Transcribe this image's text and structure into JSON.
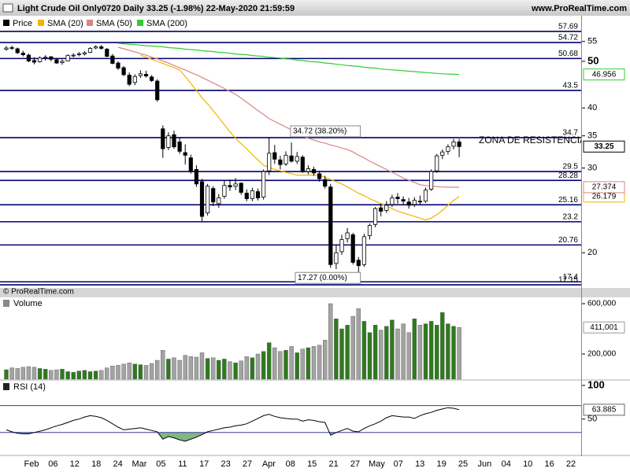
{
  "header": {
    "title": "Light Crude Oil Only0720 Daily 33.25 (-1.98%) 22-May-2020 21:59:59",
    "site": "www.ProRealTime.com"
  },
  "x_axis": {
    "labels": [
      "Feb",
      "06",
      "12",
      "18",
      "24",
      "Mar",
      "05",
      "11",
      "17",
      "23",
      "27",
      "Apr",
      "08",
      "15",
      "21",
      "27",
      "May",
      "07",
      "13",
      "19",
      "25",
      "Jun",
      "04",
      "10",
      "16",
      "22"
    ]
  },
  "chart_data": [
    {
      "type": "candlestick",
      "name": "Price",
      "log_scale": true,
      "ylim": [
        16.9,
        62.2
      ],
      "yticks": [
        20,
        30,
        35,
        40,
        50,
        55
      ],
      "up_color": "#ffffff",
      "down_color": "#000000",
      "ohlc": [
        [
          53.0,
          53.8,
          52.6,
          53.3
        ],
        [
          53.4,
          53.9,
          52.8,
          53.3
        ],
        [
          53.1,
          53.4,
          51.8,
          52.1
        ],
        [
          52.0,
          52.6,
          51.2,
          51.6
        ],
        [
          51.5,
          51.9,
          49.8,
          50.1
        ],
        [
          50.2,
          51.0,
          49.3,
          49.8
        ],
        [
          49.9,
          51.2,
          49.7,
          50.8
        ],
        [
          50.9,
          51.5,
          50.2,
          51.0
        ],
        [
          51.1,
          51.3,
          50.0,
          50.5
        ],
        [
          50.4,
          50.8,
          49.4,
          49.6
        ],
        [
          49.7,
          50.5,
          49.2,
          50.0
        ],
        [
          50.1,
          51.7,
          50.0,
          51.4
        ],
        [
          51.4,
          52.0,
          51.0,
          51.5
        ],
        [
          51.6,
          52.3,
          51.2,
          51.8
        ],
        [
          51.8,
          52.5,
          51.4,
          52.1
        ],
        [
          52.2,
          53.5,
          52.0,
          53.2
        ],
        [
          53.3,
          54.0,
          53.0,
          53.6
        ],
        [
          53.6,
          54.1,
          52.9,
          53.2
        ],
        [
          53.0,
          53.3,
          51.0,
          51.2
        ],
        [
          51.3,
          51.8,
          49.3,
          49.5
        ],
        [
          49.6,
          50.0,
          48.0,
          48.4
        ],
        [
          48.5,
          48.9,
          46.6,
          46.9
        ],
        [
          46.8,
          47.4,
          44.4,
          44.8
        ],
        [
          45.2,
          47.0,
          44.6,
          46.5
        ],
        [
          46.7,
          47.9,
          46.2,
          47.1
        ],
        [
          47.0,
          47.8,
          46.3,
          46.6
        ],
        [
          46.4,
          46.8,
          45.3,
          45.6
        ],
        [
          45.5,
          45.9,
          41.2,
          41.6
        ],
        [
          36.2,
          36.8,
          31.5,
          32.9
        ],
        [
          33.1,
          35.6,
          32.7,
          35.0
        ],
        [
          35.2,
          35.9,
          32.9,
          33.2
        ],
        [
          34.0,
          34.8,
          32.1,
          32.5
        ],
        [
          32.3,
          33.6,
          30.5,
          31.9
        ],
        [
          31.5,
          32.0,
          29.2,
          29.5
        ],
        [
          29.8,
          30.4,
          27.4,
          27.8
        ],
        [
          28.1,
          28.5,
          23.2,
          23.8
        ],
        [
          24.2,
          27.8,
          23.9,
          27.5
        ],
        [
          27.2,
          27.5,
          25.0,
          25.5
        ],
        [
          25.3,
          26.5,
          24.8,
          26.0
        ],
        [
          26.2,
          28.3,
          25.9,
          27.6
        ],
        [
          27.6,
          28.4,
          26.9,
          27.4
        ],
        [
          27.5,
          28.6,
          27.0,
          27.8
        ],
        [
          27.9,
          28.0,
          26.4,
          26.7
        ],
        [
          26.6,
          27.1,
          25.6,
          25.9
        ],
        [
          25.9,
          27.3,
          25.6,
          26.9
        ],
        [
          26.8,
          27.2,
          25.7,
          26.0
        ],
        [
          26.1,
          29.8,
          25.8,
          29.5
        ],
        [
          29.6,
          34.72,
          29.0,
          32.2
        ],
        [
          32.3,
          33.5,
          30.6,
          31.3
        ],
        [
          31.2,
          31.8,
          29.8,
          30.5
        ],
        [
          30.6,
          32.5,
          30.3,
          31.9
        ],
        [
          31.8,
          33.9,
          30.8,
          31.0
        ],
        [
          31.0,
          32.4,
          30.6,
          31.7
        ],
        [
          31.6,
          31.9,
          29.3,
          29.6
        ],
        [
          29.5,
          30.4,
          29.1,
          29.9
        ],
        [
          29.8,
          30.2,
          28.9,
          29.3
        ],
        [
          29.2,
          29.6,
          28.1,
          28.5
        ],
        [
          28.4,
          28.9,
          27.2,
          27.5
        ],
        [
          27.4,
          27.8,
          18.6,
          18.9
        ],
        [
          19.0,
          20.8,
          18.5,
          20.0
        ],
        [
          20.1,
          21.8,
          19.8,
          21.3
        ],
        [
          21.4,
          22.5,
          21.0,
          22.0
        ],
        [
          21.8,
          22.0,
          18.9,
          19.1
        ],
        [
          19.3,
          19.6,
          17.27,
          18.8
        ],
        [
          18.9,
          21.9,
          18.7,
          21.6
        ],
        [
          21.7,
          23.0,
          21.3,
          22.8
        ],
        [
          22.9,
          24.9,
          22.6,
          24.7
        ],
        [
          24.8,
          25.3,
          23.8,
          24.4
        ],
        [
          24.5,
          25.6,
          24.2,
          25.1
        ],
        [
          25.2,
          26.4,
          24.9,
          26.0
        ],
        [
          26.1,
          26.6,
          25.3,
          25.9
        ],
        [
          25.8,
          26.2,
          25.1,
          25.6
        ],
        [
          25.5,
          26.0,
          24.7,
          25.1
        ],
        [
          25.2,
          26.1,
          24.9,
          25.7
        ],
        [
          25.6,
          26.3,
          25.1,
          25.5
        ],
        [
          25.6,
          27.3,
          25.4,
          27.0
        ],
        [
          27.1,
          29.8,
          26.9,
          29.5
        ],
        [
          29.6,
          32.1,
          29.3,
          31.8
        ],
        [
          31.9,
          32.8,
          31.3,
          32.4
        ],
        [
          32.5,
          33.6,
          32.0,
          33.2
        ],
        [
          33.3,
          34.5,
          32.8,
          34.0
        ],
        [
          34.0,
          34.5,
          31.6,
          33.25
        ]
      ],
      "series": [
        {
          "name": "SMA (20)",
          "color": "#f2b400",
          "values": [
            null,
            null,
            null,
            null,
            null,
            null,
            null,
            null,
            null,
            null,
            null,
            null,
            null,
            null,
            null,
            null,
            null,
            null,
            null,
            null,
            null,
            null,
            null,
            null,
            51.5,
            51.0,
            50.5,
            50.0,
            49.5,
            49.0,
            48.5,
            48.0,
            46.5,
            45.0,
            43.5,
            42.0,
            40.8,
            39.5,
            38.2,
            36.9,
            35.7,
            34.6,
            33.7,
            32.9,
            32.0,
            31.2,
            30.4,
            30.1,
            29.8,
            29.6,
            29.4,
            29.2,
            29.0,
            29.0,
            29.0,
            29.0,
            29.0,
            28.7,
            28.4,
            28.1,
            27.8,
            27.4,
            27.0,
            26.6,
            26.3,
            25.9,
            25.6,
            25.3,
            25.0,
            24.7,
            24.4,
            24.2,
            24.0,
            23.8,
            23.6,
            23.4,
            23.6,
            24.0,
            24.5,
            25.1,
            25.7,
            26.179
          ]
        },
        {
          "name": "SMA (50)",
          "color": "#d98585",
          "values": [
            null,
            null,
            null,
            null,
            null,
            null,
            null,
            null,
            null,
            null,
            null,
            null,
            null,
            null,
            null,
            null,
            null,
            null,
            null,
            null,
            53.5,
            53.1,
            52.7,
            52.3,
            51.9,
            51.5,
            51.0,
            50.6,
            50.1,
            49.6,
            49.0,
            48.5,
            48.0,
            47.4,
            46.9,
            46.3,
            45.7,
            45.1,
            44.5,
            43.9,
            43.3,
            42.7,
            41.9,
            41.1,
            40.3,
            39.5,
            38.8,
            38.0,
            37.5,
            37.0,
            36.5,
            36.0,
            35.5,
            35.0,
            34.6,
            34.3,
            34.0,
            33.8,
            33.5,
            33.3,
            33.0,
            32.8,
            32.4,
            31.9,
            31.5,
            31.0,
            30.6,
            30.2,
            29.8,
            29.4,
            29.0,
            28.6,
            28.3,
            28.0,
            27.7,
            27.6,
            27.5,
            27.45,
            27.4,
            27.38,
            27.37,
            27.374
          ]
        },
        {
          "name": "SMA (200)",
          "color": "#33cc33",
          "values": [
            null,
            null,
            null,
            null,
            null,
            null,
            null,
            null,
            null,
            null,
            null,
            null,
            null,
            null,
            null,
            null,
            null,
            null,
            null,
            null,
            54.5,
            54.4,
            54.3,
            54.2,
            54.0,
            53.9,
            53.8,
            53.7,
            53.6,
            53.4,
            53.3,
            53.2,
            53.0,
            52.9,
            52.8,
            52.6,
            52.5,
            52.4,
            52.2,
            52.1,
            52.0,
            51.8,
            51.7,
            51.6,
            51.4,
            51.3,
            51.2,
            51.0,
            50.9,
            50.8,
            50.6,
            50.5,
            50.3,
            50.2,
            50.0,
            49.9,
            49.8,
            49.6,
            49.5,
            49.3,
            49.2,
            49.0,
            48.9,
            48.8,
            48.6,
            48.5,
            48.4,
            48.2,
            48.1,
            48.0,
            47.9,
            47.8,
            47.7,
            47.6,
            47.5,
            47.4,
            47.3,
            47.2,
            47.1,
            47.05,
            47.0,
            46.956
          ]
        }
      ],
      "levels": [
        57.69,
        54.72,
        50.68,
        43.5,
        34.7,
        29.5,
        28.28,
        25.16,
        23.2,
        20.76,
        17.4,
        17.15
      ],
      "level_color": "#00006e",
      "annotations": [
        {
          "text": "34.72 (38.20%)"
        },
        {
          "text": "17.27 (0.00%)"
        },
        {
          "text": "ZONA DE RESISTENCIA",
          "color": "#e00000"
        }
      ],
      "copyright": "© ProRealTime.com"
    },
    {
      "type": "bar",
      "title": "Volume",
      "ylim": [
        0,
        650000
      ],
      "yticks": [
        {
          "value": 200000,
          "label": "200,000"
        },
        {
          "value": 600000,
          "label": "600,000"
        }
      ],
      "up_color": "#2f7a1e",
      "down_color": "#a3a3a3",
      "values": [
        75000,
        90000,
        85000,
        95000,
        100000,
        95000,
        85000,
        80000,
        70000,
        75000,
        80000,
        60000,
        55000,
        65000,
        70000,
        60000,
        65000,
        70000,
        90000,
        105000,
        110000,
        120000,
        130000,
        120000,
        115000,
        110000,
        125000,
        150000,
        230000,
        160000,
        170000,
        150000,
        190000,
        180000,
        175000,
        210000,
        165000,
        170000,
        150000,
        160000,
        140000,
        130000,
        145000,
        180000,
        170000,
        200000,
        220000,
        290000,
        250000,
        220000,
        230000,
        260000,
        210000,
        240000,
        250000,
        260000,
        270000,
        310000,
        600000,
        480000,
        400000,
        430000,
        500000,
        560000,
        460000,
        370000,
        430000,
        390000,
        420000,
        470000,
        400000,
        440000,
        370000,
        480000,
        430000,
        440000,
        460000,
        430000,
        530000,
        440000,
        420000,
        411001
      ],
      "last_label": "411,001"
    },
    {
      "type": "line",
      "title": "RSI (14)",
      "ylim": [
        -3,
        107
      ],
      "yticks": [
        50,
        100
      ],
      "levels": [
        30,
        70
      ],
      "level_color": "#3a3aa0",
      "color": "#000000",
      "fill_color": "#4c9a4c",
      "values": [
        34,
        31,
        29,
        28,
        28,
        30,
        32,
        34,
        37,
        40,
        42,
        45,
        48,
        50,
        53,
        55,
        54,
        52,
        48,
        43,
        38,
        34,
        35,
        36,
        37,
        35,
        33,
        31,
        20,
        24,
        22,
        19,
        17,
        20,
        23,
        27,
        31,
        33,
        35,
        37,
        38,
        40,
        41,
        43,
        47,
        51,
        55,
        57,
        54,
        52,
        51,
        50,
        50,
        47,
        49,
        48,
        46,
        45,
        26,
        30,
        33,
        36,
        32,
        31,
        36,
        40,
        43,
        47,
        52,
        55,
        54,
        53,
        53,
        51,
        55,
        58,
        60,
        63,
        65,
        67,
        66,
        63.885
      ]
    }
  ]
}
